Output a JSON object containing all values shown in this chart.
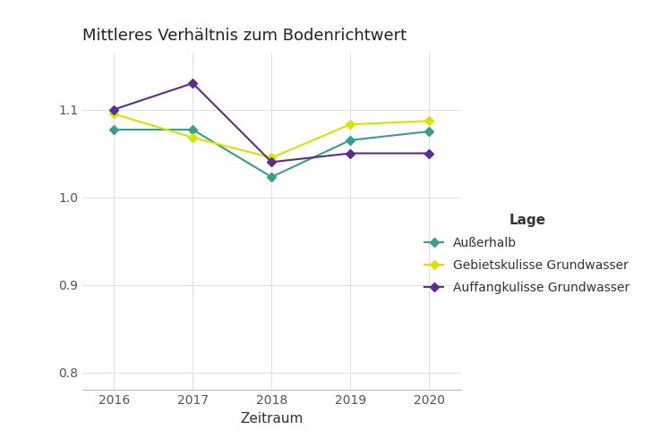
{
  "title": "Mittleres Verhältnis zum Bodenrichtwert",
  "xlabel": "Zeitraum",
  "ylabel": "",
  "years": [
    2016,
    2017,
    2018,
    2019,
    2020
  ],
  "series": {
    "Außerhalb": {
      "values": [
        1.077,
        1.077,
        1.023,
        1.065,
        1.075
      ],
      "color": "#3a9e8d",
      "marker": "D"
    },
    "Gebietskulisse Grundwasser": {
      "values": [
        1.095,
        1.068,
        1.045,
        1.083,
        1.087
      ],
      "color": "#d4e600",
      "marker": "D"
    },
    "Auffangkulisse Grundwasser": {
      "values": [
        1.1,
        1.13,
        1.04,
        1.05,
        1.05
      ],
      "color": "#5c2d8c",
      "marker": "D"
    }
  },
  "ylim": [
    0.78,
    1.165
  ],
  "yticks": [
    0.8,
    0.9,
    1.0,
    1.1
  ],
  "background_color": "#ffffff",
  "grid_color": "#e0e0e0",
  "legend_title": "Lage",
  "title_fontsize": 13,
  "label_fontsize": 11,
  "tick_fontsize": 10,
  "legend_fontsize": 10
}
